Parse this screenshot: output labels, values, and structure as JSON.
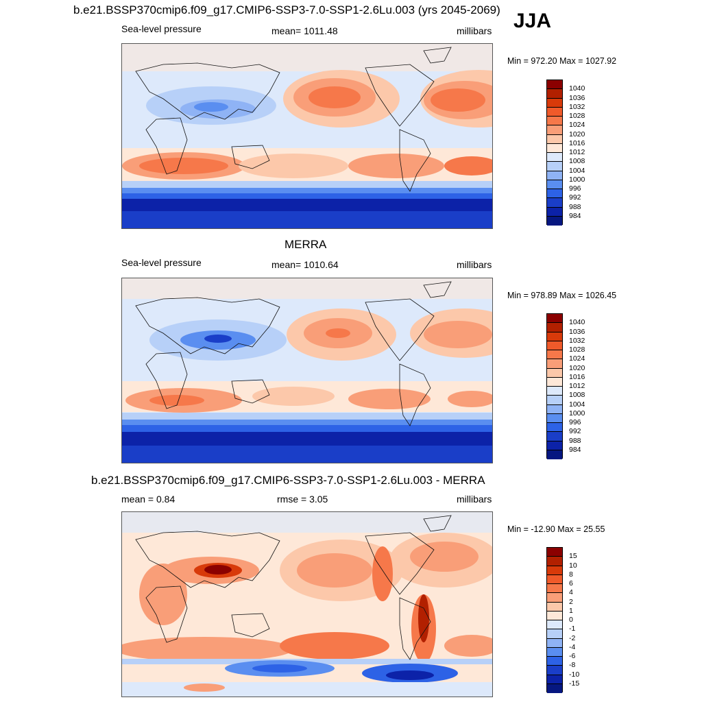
{
  "season": "JJA",
  "panels": [
    {
      "title": "b.e21.BSSP370cmip6.f09_g17.CMIP6-SSP3-7.0-SSP1-2.6Lu.003 (yrs 2045-2069)",
      "left_label": "Sea-level pressure",
      "center_label": "mean= 1011.48",
      "right_label": "millibars",
      "minmax": "Min = 972.20 Max = 1027.92",
      "colorbar_labels": [
        "1040",
        "1036",
        "1032",
        "1028",
        "1024",
        "1020",
        "1016",
        "1012",
        "1008",
        "1004",
        "1000",
        "996",
        "992",
        "988",
        "984"
      ]
    },
    {
      "title": "MERRA",
      "left_label": "Sea-level pressure",
      "center_label": "mean= 1010.64",
      "right_label": "millibars",
      "minmax": "Min = 978.89 Max = 1026.45",
      "colorbar_labels": [
        "1040",
        "1036",
        "1032",
        "1028",
        "1024",
        "1020",
        "1016",
        "1012",
        "1008",
        "1004",
        "1000",
        "996",
        "992",
        "988",
        "984"
      ]
    },
    {
      "title": "b.e21.BSSP370cmip6.f09_g17.CMIP6-SSP3-7.0-SSP1-2.6Lu.003 - MERRA",
      "left_label": "mean =   0.84",
      "center_label": "rmse =   3.05",
      "right_label": "millibars",
      "minmax": "Min = -12.90 Max =  25.55",
      "colorbar_labels": [
        "15",
        "10",
        "8",
        "6",
        "4",
        "2",
        "1",
        "0",
        "-1",
        "-2",
        "-4",
        "-6",
        "-8",
        "-10",
        "-15"
      ]
    }
  ],
  "colors": {
    "abs_scale": [
      "#8b0000",
      "#b22000",
      "#d83a0a",
      "#f05a2a",
      "#f6784a",
      "#f99e78",
      "#fcc8aa",
      "#fee8d8",
      "#dde9fb",
      "#b7d0f8",
      "#8fb3f5",
      "#5a8ef0",
      "#2d62e6",
      "#1a3ec8",
      "#0c22a8",
      "#061780"
    ],
    "diff_scale": [
      "#8b0000",
      "#b22000",
      "#d83a0a",
      "#f05a2a",
      "#f6784a",
      "#f99e78",
      "#fcc8aa",
      "#fee8d8",
      "#dde9fb",
      "#b7d0f8",
      "#8fb3f5",
      "#5a8ef0",
      "#2d62e6",
      "#1a3ec8",
      "#0c22a8",
      "#061780"
    ]
  }
}
